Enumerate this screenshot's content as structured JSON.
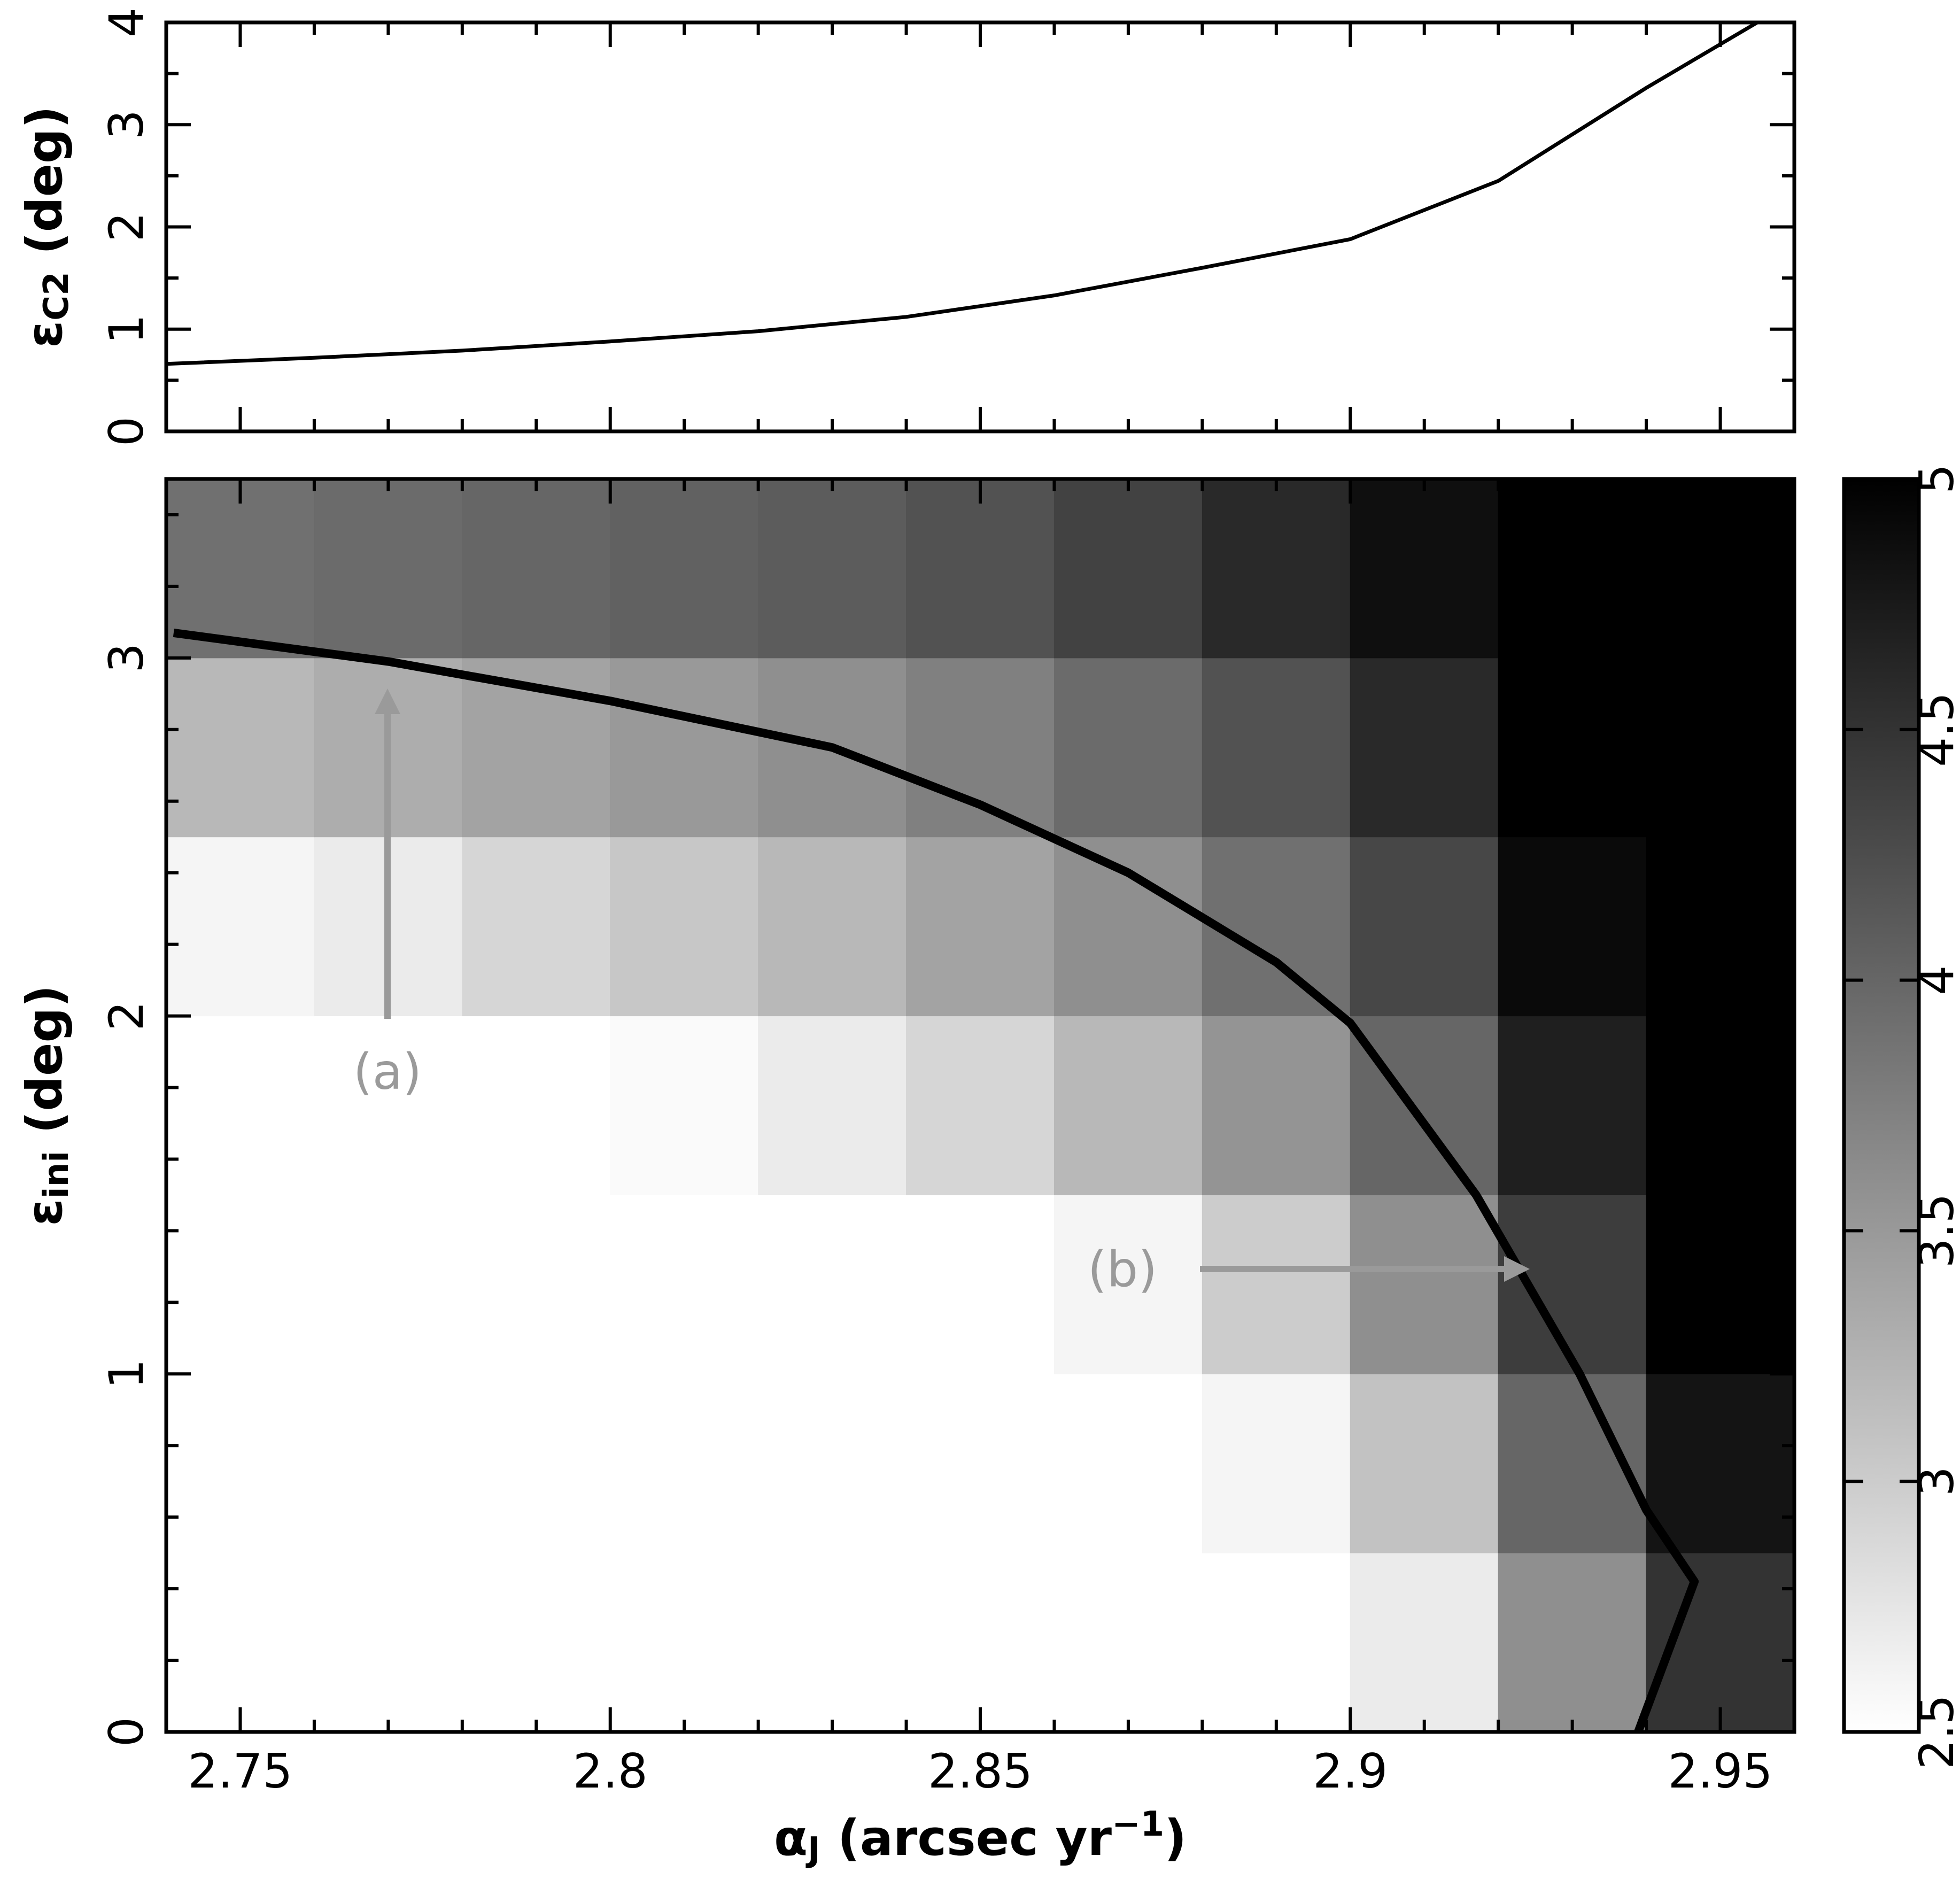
{
  "chart_data": [
    {
      "type": "line",
      "ylabel": [
        {
          "text": "ε"
        },
        {
          "text": "C2",
          "shift": "sub"
        },
        {
          "text": " (deg)"
        }
      ],
      "xlim": [
        2.74,
        2.96
      ],
      "ylim": [
        0,
        4
      ],
      "xticks": [
        2.75,
        2.8,
        2.85,
        2.9,
        2.95
      ],
      "xminor": [
        2.74,
        2.76,
        2.77,
        2.78,
        2.79,
        2.81,
        2.82,
        2.83,
        2.84,
        2.86,
        2.87,
        2.88,
        2.89,
        2.91,
        2.92,
        2.93,
        2.94,
        2.96
      ],
      "yticks": [
        0,
        1,
        2,
        3,
        4
      ],
      "yminor": [
        0.5,
        1.5,
        2.5,
        3.5
      ],
      "series": [
        {
          "color": "#000000",
          "x": [
            2.74,
            2.76,
            2.78,
            2.8,
            2.82,
            2.84,
            2.86,
            2.88,
            2.9,
            2.92,
            2.94,
            2.955
          ],
          "values": [
            0.66,
            0.72,
            0.79,
            0.88,
            0.98,
            1.12,
            1.33,
            1.6,
            1.88,
            2.45,
            3.36,
            4.0
          ]
        }
      ]
    },
    {
      "type": "heatmap",
      "xlabel": [
        {
          "text": "α"
        },
        {
          "text": "J",
          "shift": "sub"
        },
        {
          "text": " (arcsec yr"
        },
        {
          "text": "−1",
          "shift": "super"
        },
        {
          "text": ")"
        }
      ],
      "ylabel": [
        {
          "text": "ε"
        },
        {
          "text": "ini",
          "shift": "sub"
        },
        {
          "text": " (deg)"
        }
      ],
      "xlim": [
        2.74,
        2.96
      ],
      "ylim": [
        0,
        3.5
      ],
      "xticks": [
        2.75,
        2.8,
        2.85,
        2.9,
        2.95
      ],
      "xminor": [
        2.74,
        2.76,
        2.77,
        2.78,
        2.79,
        2.81,
        2.82,
        2.83,
        2.84,
        2.86,
        2.87,
        2.88,
        2.89,
        2.91,
        2.92,
        2.93,
        2.94,
        2.96
      ],
      "yticks": [
        0,
        1,
        2,
        3
      ],
      "yminor": [
        0.2,
        0.4,
        0.6,
        0.8,
        1.2,
        1.4,
        1.6,
        1.8,
        2.2,
        2.4,
        2.6,
        2.8,
        3.2,
        3.4
      ],
      "x": [
        2.75,
        2.77,
        2.79,
        2.81,
        2.83,
        2.85,
        2.87,
        2.89,
        2.91,
        2.93,
        2.95
      ],
      "y": [
        0.25,
        0.75,
        1.25,
        1.75,
        2.25,
        2.75,
        3.25
      ],
      "z": [
        [
          2.5,
          2.5,
          2.5,
          2.5,
          2.5,
          2.5,
          2.5,
          2.5,
          2.7,
          3.6,
          4.5
        ],
        [
          2.5,
          2.5,
          2.5,
          2.5,
          2.5,
          2.5,
          2.5,
          2.6,
          3.1,
          4.0,
          4.8
        ],
        [
          2.5,
          2.5,
          2.5,
          2.5,
          2.5,
          2.5,
          2.6,
          3.0,
          3.6,
          4.4,
          5.0
        ],
        [
          2.5,
          2.5,
          2.5,
          2.55,
          2.7,
          2.9,
          3.2,
          3.55,
          4.0,
          4.7,
          5.0
        ],
        [
          2.6,
          2.7,
          2.9,
          3.05,
          3.2,
          3.4,
          3.6,
          3.9,
          4.3,
          4.9,
          5.0
        ],
        [
          3.2,
          3.3,
          3.4,
          3.5,
          3.6,
          3.75,
          3.95,
          4.2,
          4.6,
          5.0,
          5.0
        ],
        [
          3.9,
          3.95,
          4.0,
          4.05,
          4.1,
          4.2,
          4.35,
          4.6,
          4.85,
          5.0,
          5.0
        ]
      ],
      "colorbar": {
        "lim": [
          2.5,
          5
        ],
        "ticks": [
          2.5,
          3,
          3.5,
          4,
          4.5,
          5
        ]
      },
      "contour": {
        "color": "#000000",
        "x": [
          2.741,
          2.77,
          2.8,
          2.83,
          2.85,
          2.87,
          2.89,
          2.9,
          2.917,
          2.931,
          2.94,
          2.9465,
          2.9389
        ],
        "y": [
          3.07,
          2.99,
          2.88,
          2.75,
          2.59,
          2.4,
          2.15,
          1.98,
          1.5,
          1.0,
          0.62,
          0.42,
          0.0
        ]
      },
      "annotations": [
        {
          "text": "(a)"
        },
        {
          "text": "(b)"
        }
      ]
    }
  ]
}
